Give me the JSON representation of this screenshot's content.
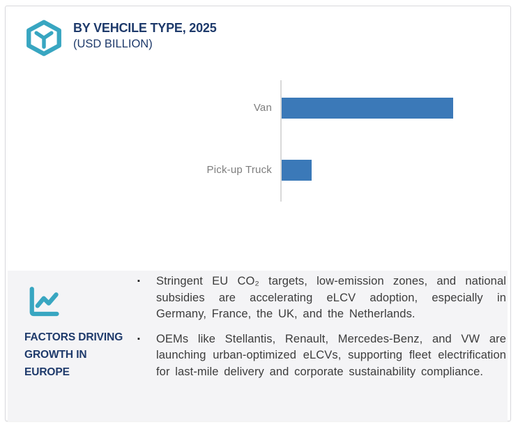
{
  "header": {
    "title": "BY VEHCILE TYPE, 2025",
    "subtitle": "(USD BILLION)"
  },
  "chart_data": {
    "type": "bar",
    "orientation": "horizontal",
    "title": "BY VEHCILE TYPE, 2025 (USD BILLION)",
    "categories": [
      "Van",
      "Pick-up Truck"
    ],
    "values": [
      5.7,
      1.0
    ],
    "xlim": [
      0,
      7.5
    ],
    "xlabel": "",
    "ylabel": "",
    "grid": false,
    "legend": false,
    "data_labels": false,
    "bar_color": "#3b79b8"
  },
  "factors": {
    "heading_lines": [
      "FACTORS DRIVING",
      "GROWTH IN",
      "EUROPE"
    ],
    "bullet_marker": "▪",
    "bullets": [
      "Stringent EU CO₂ targets, low-emission zones, and national subsidies are accelerating eLCV adoption, especially in Germany, France, the UK, and the Netherlands.",
      "OEMs like Stellantis, Renault, Mercedes-Benz, and VW are launching urban-optimized eLCVs, supporting fleet electrification for last-mile delivery and corporate sustainability compliance."
    ]
  },
  "icons": {
    "header_icon": "hexagon-cube-icon",
    "factors_icon": "line-chart-icon"
  },
  "colors": {
    "accent_teal": "#38a6c1",
    "navy": "#1e3a6b",
    "bar_blue": "#3b79b8",
    "label_gray": "#7d7d7d",
    "band_bg": "#f4f4f6",
    "card_border": "#d8d8dc",
    "body_text": "#3c3c3c"
  }
}
